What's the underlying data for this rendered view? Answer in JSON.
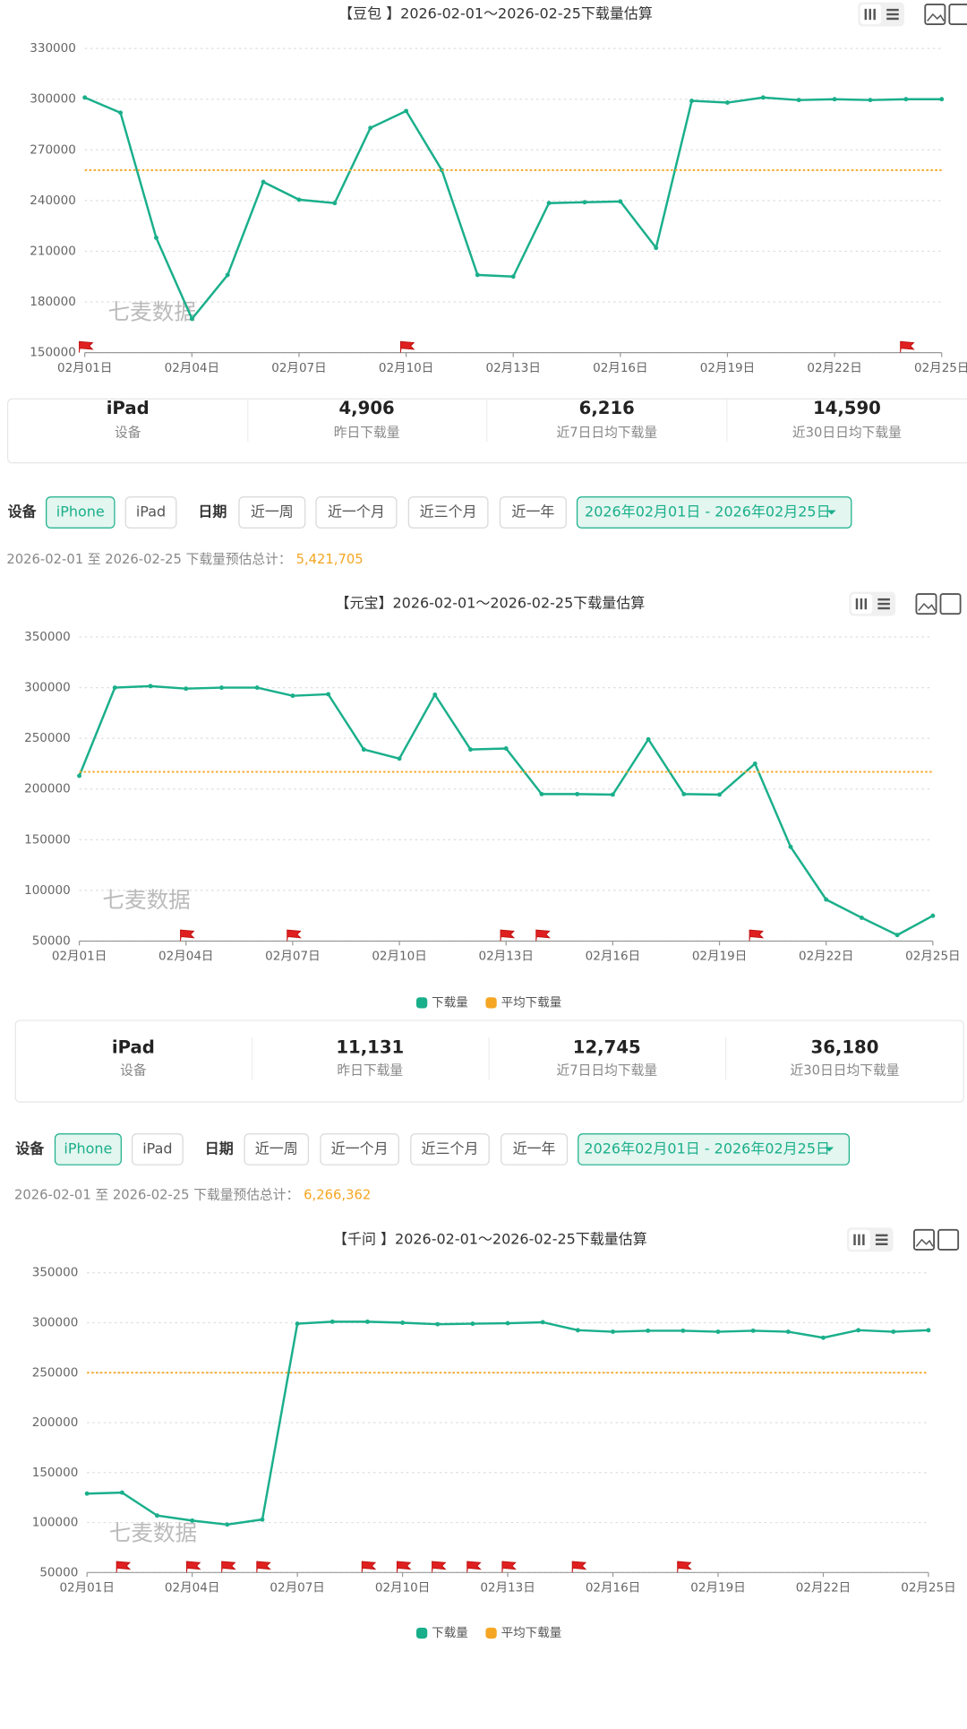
{
  "chart_data": [
    {
      "type": "line",
      "title": "【豆包 】2026-02-01～2026-02-25下载量估算",
      "watermark": "七麦数据",
      "categories": [
        "02月01日",
        null,
        null,
        "02月04日",
        null,
        null,
        "02月07日",
        null,
        null,
        "02月10日",
        null,
        null,
        "02月13日",
        null,
        null,
        "02月16日",
        null,
        null,
        "02月19日",
        null,
        null,
        "02月22日",
        null,
        null,
        "02月25日"
      ],
      "series": [
        {
          "color": "#1aaf8b",
          "style": "solid",
          "values": [
            301000,
            292000,
            218000,
            170000,
            196000,
            251000,
            240500,
            238500,
            283000,
            293000,
            258000,
            196000,
            195000,
            238500,
            239000,
            239500,
            212000,
            299000,
            298000,
            301000,
            299500,
            300000,
            299500,
            300000,
            300000
          ]
        },
        {
          "color": "#f5a623",
          "style": "dotted",
          "values": [
            258000,
            258000,
            258000,
            258000,
            258000,
            258000,
            258000,
            258000,
            258000,
            258000,
            258000,
            258000,
            258000,
            258000,
            258000,
            258000,
            258000,
            258000,
            258000,
            258000,
            258000,
            258000,
            258000,
            258000,
            258000
          ]
        }
      ],
      "flags": [
        0,
        9,
        23
      ],
      "ylim": [
        150000,
        330000
      ],
      "yticks": [
        150000,
        180000,
        210000,
        240000,
        270000,
        300000,
        330000
      ],
      "grid": true,
      "legend": false
    },
    {
      "type": "line",
      "title": "【元宝】2026-02-01～2026-02-25下载量估算",
      "watermark": "七麦数据",
      "categories": [
        "02月01日",
        null,
        null,
        "02月04日",
        null,
        null,
        "02月07日",
        null,
        null,
        "02月10日",
        null,
        null,
        "02月13日",
        null,
        null,
        "02月16日",
        null,
        null,
        "02月19日",
        null,
        null,
        "02月22日",
        null,
        null,
        "02月25日"
      ],
      "series": [
        {
          "name": "下载量",
          "color": "#1aaf8b",
          "style": "solid",
          "values": [
            213000,
            300000,
            301500,
            299000,
            300000,
            300000,
            292000,
            293500,
            239000,
            230000,
            293000,
            239000,
            240000,
            195000,
            195000,
            194500,
            249000,
            195000,
            194500,
            225000,
            143000,
            91000,
            73000,
            56000,
            75000
          ]
        },
        {
          "name": "平均下载量",
          "color": "#f5a623",
          "style": "dotted",
          "values": [
            217000,
            217000,
            217000,
            217000,
            217000,
            217000,
            217000,
            217000,
            217000,
            217000,
            217000,
            217000,
            217000,
            217000,
            217000,
            217000,
            217000,
            217000,
            217000,
            217000,
            217000,
            217000,
            217000,
            217000,
            217000
          ]
        }
      ],
      "flags": [
        3,
        6,
        12,
        13,
        19
      ],
      "ylim": [
        50000,
        350000
      ],
      "yticks": [
        50000,
        100000,
        150000,
        200000,
        250000,
        300000,
        350000
      ],
      "grid": true,
      "legend": true
    },
    {
      "type": "line",
      "title": "【千问 】2026-02-01～2026-02-25下载量估算",
      "watermark": "七麦数据",
      "categories": [
        "02月01日",
        null,
        null,
        "02月04日",
        null,
        null,
        "02月07日",
        null,
        null,
        "02月10日",
        null,
        null,
        "02月13日",
        null,
        null,
        "02月16日",
        null,
        null,
        "02月19日",
        null,
        null,
        "02月22日",
        null,
        null,
        "02月25日"
      ],
      "series": [
        {
          "name": "下载量",
          "color": "#1aaf8b",
          "style": "solid",
          "values": [
            129000,
            130000,
            107000,
            102000,
            98000,
            103000,
            299000,
            301000,
            301000,
            300000,
            298500,
            299000,
            299500,
            300500,
            292500,
            291000,
            292000,
            292000,
            291000,
            292000,
            291000,
            285000,
            292500,
            291000,
            292500
          ]
        },
        {
          "name": "平均下载量",
          "color": "#f5a623",
          "style": "dotted",
          "values": [
            250000,
            250000,
            250000,
            250000,
            250000,
            250000,
            250000,
            250000,
            250000,
            250000,
            250000,
            250000,
            250000,
            250000,
            250000,
            250000,
            250000,
            250000,
            250000,
            250000,
            250000,
            250000,
            250000,
            250000,
            250000
          ]
        }
      ],
      "flags": [
        1,
        3,
        4,
        5,
        8,
        9,
        10,
        11,
        12,
        14,
        17
      ],
      "ylim": [
        50000,
        350000
      ],
      "yticks": [
        50000,
        100000,
        150000,
        200000,
        250000,
        300000,
        350000
      ],
      "grid": true,
      "legend": true
    }
  ],
  "stats": [
    [
      {
        "value": "iPad",
        "label": "设备"
      },
      {
        "value": "4,906",
        "label": "昨日下载量"
      },
      {
        "value": "6,216",
        "label": "近7日日均下载量"
      },
      {
        "value": "14,590",
        "label": "近30日日均下载量"
      }
    ],
    [
      {
        "value": "iPad",
        "label": "设备"
      },
      {
        "value": "11,131",
        "label": "昨日下载量"
      },
      {
        "value": "12,745",
        "label": "近7日日均下载量"
      },
      {
        "value": "36,180",
        "label": "近30日日均下载量"
      }
    ]
  ],
  "filters": [
    {
      "device_label": "设备",
      "devices": [
        "iPhone",
        "iPad"
      ],
      "date_label": "日期",
      "ranges": [
        "近一周",
        "近一个月",
        "近三个月",
        "近一年"
      ],
      "date_range": "2026年02月01日 - 2026年02月25日"
    },
    {
      "device_label": "设备",
      "devices": [
        "iPhone",
        "iPad"
      ],
      "date_label": "日期",
      "ranges": [
        "近一周",
        "近一个月",
        "近三个月",
        "近一年"
      ],
      "date_range": "2026年02月01日 - 2026年02月25日"
    }
  ],
  "totals": [
    {
      "label": "2026-02-01 至 2026-02-25 下载量预估总计：",
      "value": "5,421,705"
    },
    {
      "label": "2026-02-01 至 2026-02-25 下载量预估总计：",
      "value": "6,266,362"
    }
  ]
}
